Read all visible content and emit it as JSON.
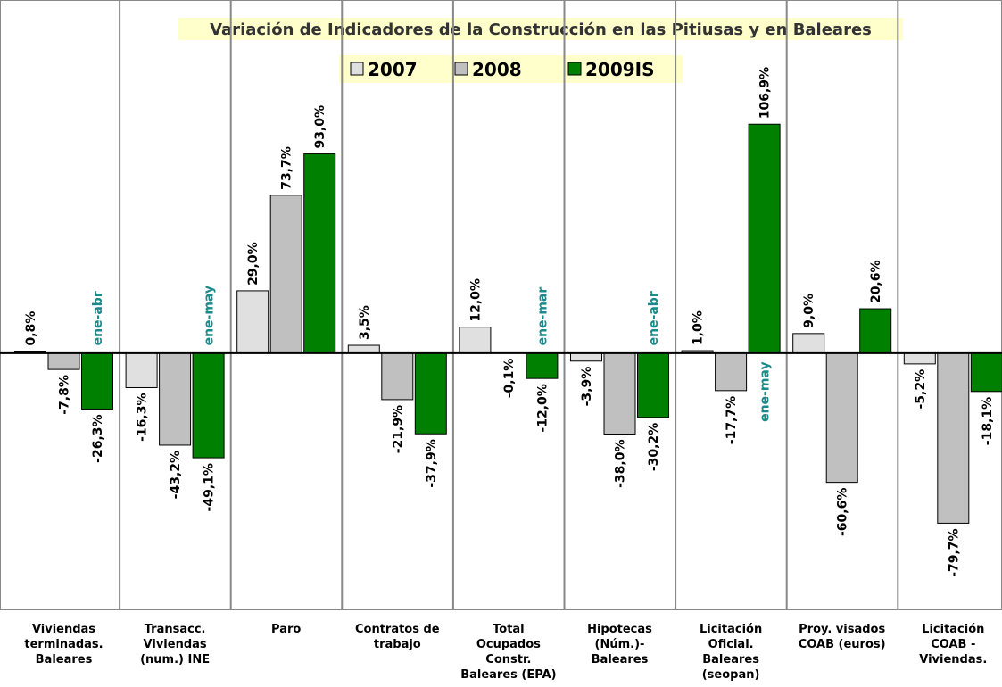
{
  "chart_data": {
    "type": "bar",
    "title": "Variación de Indicadores de la Construcción en las Pitiusas y en Baleares",
    "categories": [
      "Viviendas\nterminadas.\nBaleares",
      "Transacc.\nViviendas\n(num.) INE",
      "Paro",
      "Contratos de\ntrabajo",
      "Total\nOcupados\nConstr.\nBaleares (EPA)",
      "Hipotecas\n(Núm.)-\nBaleares",
      "Licitación\nOficial.\nBaleares\n(seopan)",
      "Proy. visados\nCOAB (euros)",
      "Licitación\nCOAB -\nViviendas."
    ],
    "series": [
      {
        "name": "2007",
        "color": "#e0e0e0",
        "values": [
          0.8,
          -16.3,
          29.0,
          3.5,
          12.0,
          -3.9,
          1.0,
          9.0,
          -5.2
        ],
        "value_labels": [
          "0,8%",
          "-16,3%",
          "29,0%",
          "3,5%",
          "12,0%",
          "-3,9%",
          "1,0%",
          "9,0%",
          "-5,2%"
        ]
      },
      {
        "name": "2008",
        "color": "#c0c0c0",
        "values": [
          -7.8,
          -43.2,
          73.7,
          -21.9,
          -0.1,
          -38.0,
          -17.7,
          -60.6,
          -79.7
        ],
        "value_labels": [
          "-7,8%",
          "-43,2%",
          "73,7%",
          "-21,9%",
          "-0,1%",
          "-38,0%",
          "-17,7%",
          "-60,6%",
          "-79,7%"
        ]
      },
      {
        "name": "2009IS",
        "color": "#008000",
        "values": [
          -26.3,
          -49.1,
          93.0,
          -37.9,
          -12.0,
          -30.2,
          106.9,
          20.6,
          -18.1
        ],
        "value_labels": [
          "-26,3%",
          "-49,1%",
          "93,0%",
          "-37,9%",
          "-12,0%",
          "-30,2%",
          "106,9%",
          "20,6%",
          "-18,1%"
        ],
        "annotations": [
          "ene-abr",
          "ene-may",
          null,
          null,
          "ene-mar",
          "ene-abr",
          "ene-may",
          null,
          null
        ]
      }
    ],
    "ylim": [
      -120,
      165
    ]
  }
}
